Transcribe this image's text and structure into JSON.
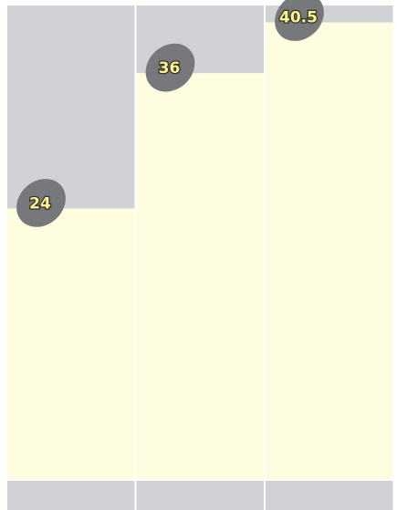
{
  "chart_data": {
    "type": "bar",
    "categories": [
      null,
      null,
      null
    ],
    "values": [
      24,
      36,
      40.5
    ],
    "color": "#fffde0",
    "ylim": [
      0,
      42
    ]
  }
}
